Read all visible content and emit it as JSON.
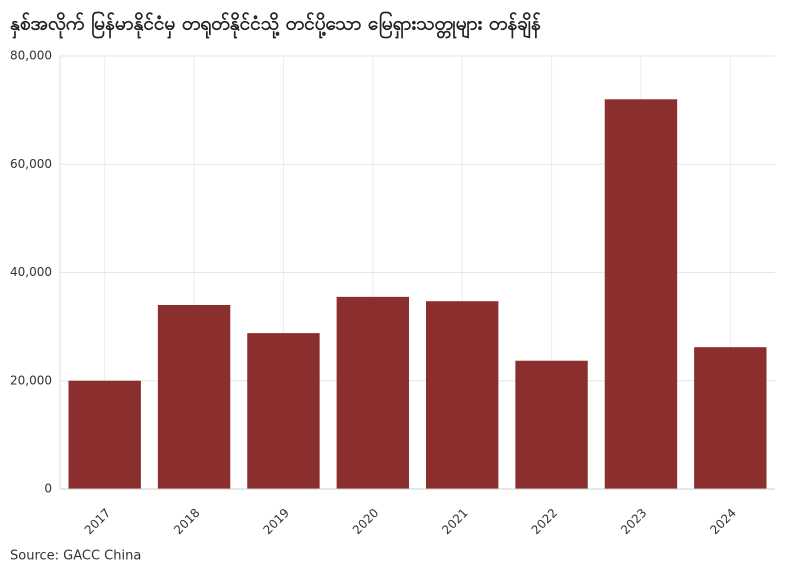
{
  "chart_data": {
    "type": "bar",
    "title": "နှစ်အလိုက် မြန်မာနိုင်ငံမှ တရုတ်နိုင်ငံသို့ တင်ပို့သော မြေရှားသတ္တုများ တန်ချိန်",
    "categories": [
      "2017",
      "2018",
      "2019",
      "2020",
      "2021",
      "2022",
      "2023",
      "2024"
    ],
    "values": [
      20000,
      34000,
      28800,
      35500,
      34700,
      23700,
      72000,
      26200
    ],
    "color": "#8b2e2e",
    "ylim": [
      0,
      80000
    ],
    "yticks": [
      0,
      {
        "value": 20000,
        "label": "20,000"
      },
      {
        "value": 40000,
        "label": "40,000"
      },
      {
        "value": 60000,
        "label": "60,000"
      },
      {
        "value": 80000,
        "label": "80,000"
      }
    ],
    "grid": true,
    "source": "Source: GACC China"
  }
}
